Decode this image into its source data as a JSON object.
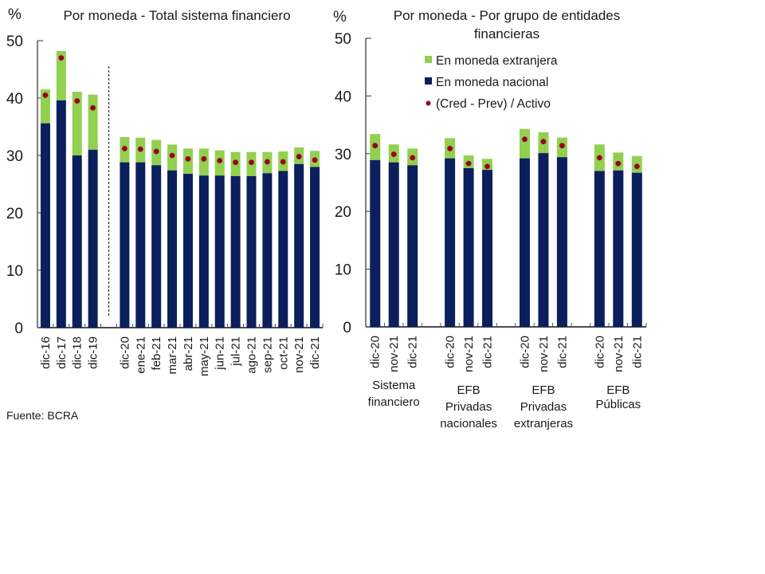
{
  "colors": {
    "foreign": "#92D050",
    "national": "#0B1F5C",
    "dot": "#9B0020",
    "axis": "#222222"
  },
  "legend": {
    "items": [
      {
        "key": "foreign",
        "label": "En moneda extranjera",
        "marker": "square"
      },
      {
        "key": "national",
        "label": "En moneda nacional",
        "marker": "square"
      },
      {
        "key": "dot",
        "label": "(Cred - Prev) / Activo",
        "marker": "dot"
      }
    ]
  },
  "source": "Fuente: BCRA",
  "chart_data": [
    {
      "type": "bar",
      "stacked": true,
      "title": "Por moneda - Total sistema financiero",
      "ylabel": "%",
      "xlabel": "",
      "ylim": [
        0,
        50
      ],
      "yticks": [
        0,
        10,
        20,
        30,
        40,
        50
      ],
      "grid": false,
      "separator_after_index": 3,
      "categories": [
        "dic-16",
        "dic-17",
        "dic-18",
        "dic-19",
        "dic-20",
        "ene-21",
        "feb-21",
        "mar-21",
        "abr-21",
        "may-21",
        "jun-21",
        "jul-21",
        "ago-21",
        "sep-21",
        "oct-21",
        "nov-21",
        "dic-21"
      ],
      "series": [
        {
          "name": "En moneda nacional",
          "key": "national",
          "kind": "bar",
          "values": [
            35.6,
            39.6,
            30.0,
            31.0,
            28.8,
            28.8,
            28.3,
            27.4,
            26.8,
            26.5,
            26.5,
            26.4,
            26.4,
            26.9,
            27.3,
            28.5,
            28.0
          ]
        },
        {
          "name": "En moneda extranjera",
          "key": "foreign",
          "kind": "bar",
          "values": [
            5.9,
            8.6,
            11.1,
            9.6,
            4.4,
            4.3,
            4.4,
            4.5,
            4.4,
            4.7,
            4.4,
            4.2,
            4.2,
            3.7,
            3.4,
            2.9,
            2.8
          ]
        },
        {
          "name": "(Cred - Prev) / Activo",
          "key": "dot",
          "kind": "dot",
          "values": [
            40.5,
            47.0,
            39.5,
            38.3,
            31.2,
            31.1,
            30.7,
            30.0,
            29.4,
            29.4,
            29.1,
            28.8,
            28.8,
            28.9,
            28.9,
            29.8,
            29.2
          ]
        }
      ]
    },
    {
      "type": "bar",
      "stacked": true,
      "title": "Por moneda - Por grupo de entidades financieras",
      "title_lines": [
        "Por moneda - Por grupo de entidades",
        "financieras"
      ],
      "ylabel": "%",
      "xlabel": "",
      "ylim": [
        0,
        50
      ],
      "yticks": [
        0,
        10,
        20,
        30,
        40,
        50
      ],
      "grid": false,
      "legend_position": "top-center",
      "groups": [
        {
          "label_lines": [
            "Sistema",
            "financiero"
          ],
          "categories": [
            "dic-20",
            "nov-21",
            "dic-21"
          ],
          "national": [
            28.9,
            28.5,
            28.0
          ],
          "foreign": [
            4.5,
            3.1,
            2.9
          ],
          "dot": [
            31.4,
            29.9,
            29.3
          ]
        },
        {
          "label_lines": [
            "EFB",
            "Privadas",
            "nacionales"
          ],
          "categories": [
            "dic-20",
            "nov-21",
            "dic-21"
          ],
          "national": [
            29.2,
            27.5,
            27.2
          ],
          "foreign": [
            3.5,
            2.2,
            1.9
          ],
          "dot": [
            30.9,
            28.3,
            27.8
          ]
        },
        {
          "label_lines": [
            "EFB",
            "Privadas",
            "extranjeras"
          ],
          "categories": [
            "dic-20",
            "nov-21",
            "dic-21"
          ],
          "national": [
            29.2,
            30.1,
            29.4
          ],
          "foreign": [
            5.1,
            3.6,
            3.4
          ],
          "dot": [
            32.5,
            32.1,
            31.4
          ]
        },
        {
          "label_lines": [
            "EFB",
            "Públicas"
          ],
          "categories": [
            "dic-20",
            "nov-21",
            "dic-21"
          ],
          "national": [
            27.0,
            27.1,
            26.7
          ],
          "foreign": [
            4.6,
            3.1,
            2.9
          ],
          "dot": [
            29.3,
            28.3,
            27.8
          ]
        }
      ]
    }
  ]
}
